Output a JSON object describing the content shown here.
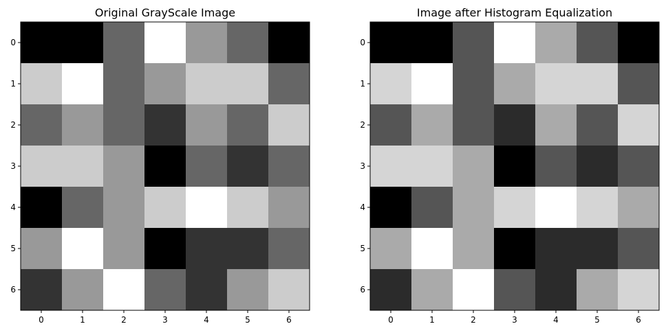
{
  "chart_data": [
    {
      "type": "heatmap",
      "title": "Original GrayScale Image",
      "xlabel": "",
      "ylabel": "",
      "colormap": "gray",
      "x_ticks": [
        "0",
        "1",
        "2",
        "3",
        "4",
        "5",
        "6"
      ],
      "y_ticks": [
        "0",
        "1",
        "2",
        "3",
        "4",
        "5",
        "6"
      ],
      "xlim": [
        -0.5,
        6.5
      ],
      "ylim": [
        6.5,
        -0.5
      ],
      "grid": false,
      "values": [
        [
          0,
          0,
          102,
          255,
          153,
          102,
          0
        ],
        [
          204,
          255,
          102,
          153,
          204,
          204,
          102
        ],
        [
          102,
          153,
          102,
          51,
          153,
          102,
          204
        ],
        [
          204,
          204,
          153,
          0,
          102,
          51,
          102
        ],
        [
          0,
          102,
          153,
          204,
          255,
          204,
          153
        ],
        [
          153,
          255,
          153,
          0,
          51,
          51,
          102
        ],
        [
          51,
          153,
          255,
          102,
          51,
          153,
          204
        ]
      ]
    },
    {
      "type": "heatmap",
      "title": "Image after Histogram Equalization",
      "xlabel": "",
      "ylabel": "",
      "colormap": "gray",
      "x_ticks": [
        "0",
        "1",
        "2",
        "3",
        "4",
        "5",
        "6"
      ],
      "y_ticks": [
        "0",
        "1",
        "2",
        "3",
        "4",
        "5",
        "6"
      ],
      "xlim": [
        -0.5,
        6.5
      ],
      "ylim": [
        6.5,
        -0.5
      ],
      "grid": false,
      "values": [
        [
          0,
          0,
          85,
          255,
          170,
          85,
          0
        ],
        [
          213,
          255,
          85,
          170,
          213,
          213,
          85
        ],
        [
          85,
          170,
          85,
          43,
          170,
          85,
          213
        ],
        [
          213,
          213,
          170,
          0,
          85,
          43,
          85
        ],
        [
          0,
          85,
          170,
          213,
          255,
          213,
          170
        ],
        [
          170,
          255,
          170,
          0,
          43,
          43,
          85
        ],
        [
          43,
          170,
          255,
          85,
          43,
          170,
          213
        ]
      ]
    }
  ]
}
